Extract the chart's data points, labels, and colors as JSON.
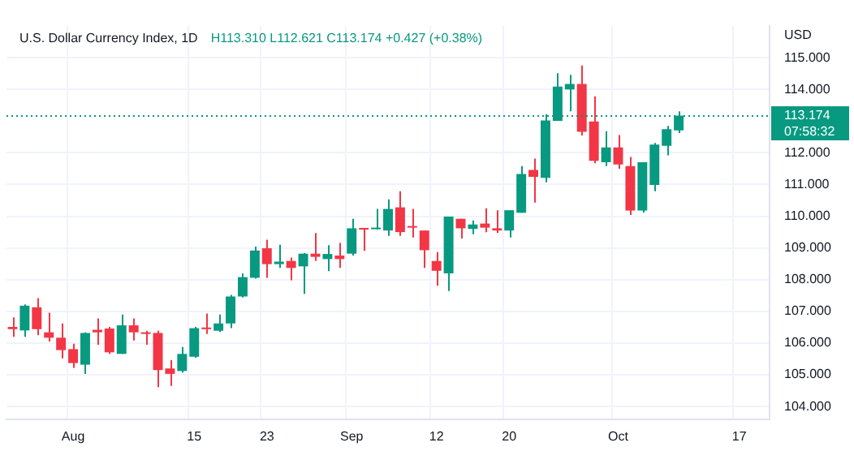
{
  "chart_data": {
    "type": "candlestick",
    "title": "U.S. Dollar Currency Index, 1D",
    "subtitle": "H113.310 L112.621 C113.174 +0.427 (+0.38%)",
    "ylabel": "USD",
    "categories": [
      null,
      null,
      null,
      null,
      null,
      "Aug",
      null,
      null,
      null,
      null,
      null,
      null,
      null,
      null,
      null,
      "15",
      null,
      null,
      null,
      null,
      null,
      "23",
      null,
      null,
      null,
      null,
      null,
      null,
      "Sep",
      null,
      null,
      null,
      null,
      null,
      null,
      "12",
      null,
      null,
      null,
      null,
      null,
      "20",
      null,
      null,
      null,
      null,
      null,
      null,
      null,
      null,
      "Oct",
      null,
      null,
      null,
      null,
      null,
      null,
      null,
      null,
      null,
      "17",
      null,
      null
    ],
    "ohlc": [
      [
        106.51,
        106.81,
        106.2,
        106.44
      ],
      [
        106.4,
        107.22,
        106.2,
        107.18
      ],
      [
        107.13,
        107.42,
        106.25,
        106.44
      ],
      [
        106.34,
        106.96,
        106.05,
        106.17
      ],
      [
        106.17,
        106.62,
        105.52,
        105.78
      ],
      [
        105.81,
        105.98,
        105.22,
        105.37
      ],
      [
        105.32,
        106.34,
        105.03,
        106.32
      ],
      [
        106.42,
        106.78,
        105.95,
        106.34
      ],
      [
        106.46,
        106.51,
        105.66,
        105.71
      ],
      [
        105.66,
        106.9,
        105.66,
        106.56
      ],
      [
        106.56,
        106.78,
        106.08,
        106.34
      ],
      [
        106.34,
        106.39,
        105.95,
        106.29
      ],
      [
        106.32,
        106.39,
        104.61,
        105.15
      ],
      [
        105.2,
        105.46,
        104.65,
        105.03
      ],
      [
        105.12,
        105.88,
        105.07,
        105.66
      ],
      [
        105.57,
        106.51,
        105.54,
        106.47
      ],
      [
        106.47,
        106.93,
        106.29,
        106.44
      ],
      [
        106.39,
        106.9,
        106.35,
        106.62
      ],
      [
        106.62,
        107.52,
        106.47,
        107.47
      ],
      [
        107.47,
        108.2,
        107.44,
        108.08
      ],
      [
        108.06,
        109.04,
        108.03,
        108.92
      ],
      [
        108.99,
        109.26,
        108.06,
        108.49
      ],
      [
        108.49,
        109.1,
        108.37,
        108.57
      ],
      [
        108.59,
        108.7,
        107.98,
        108.37
      ],
      [
        108.42,
        108.84,
        107.55,
        108.82
      ],
      [
        108.82,
        109.47,
        108.59,
        108.72
      ],
      [
        108.65,
        109.09,
        108.27,
        108.81
      ],
      [
        108.76,
        109.16,
        108.37,
        108.65
      ],
      [
        108.82,
        109.92,
        108.76,
        109.62
      ],
      [
        109.62,
        109.62,
        108.91,
        109.58
      ],
      [
        109.59,
        110.23,
        109.58,
        109.62
      ],
      [
        109.55,
        110.53,
        109.38,
        110.23
      ],
      [
        110.28,
        110.79,
        109.38,
        109.5
      ],
      [
        109.69,
        110.23,
        109.33,
        109.64
      ],
      [
        109.55,
        109.55,
        108.37,
        108.93
      ],
      [
        108.59,
        108.87,
        107.81,
        108.28
      ],
      [
        108.2,
        109.99,
        107.64,
        109.99
      ],
      [
        109.92,
        109.92,
        109.3,
        109.62
      ],
      [
        109.6,
        109.87,
        109.43,
        109.74
      ],
      [
        109.77,
        110.25,
        109.5,
        109.64
      ],
      [
        109.62,
        110.19,
        109.47,
        109.55
      ],
      [
        109.55,
        110.19,
        109.33,
        110.19
      ],
      [
        110.11,
        111.58,
        110.11,
        111.33
      ],
      [
        111.46,
        111.82,
        110.43,
        111.24
      ],
      [
        111.21,
        113.22,
        111.07,
        113.02
      ],
      [
        113.01,
        114.51,
        113.01,
        114.09
      ],
      [
        114.0,
        114.46,
        113.31,
        114.17
      ],
      [
        114.17,
        114.75,
        112.55,
        112.66
      ],
      [
        112.99,
        113.78,
        111.67,
        111.75
      ],
      [
        111.7,
        112.68,
        111.58,
        112.17
      ],
      [
        112.17,
        112.56,
        111.5,
        111.63
      ],
      [
        111.58,
        111.87,
        110.04,
        110.18
      ],
      [
        110.18,
        111.7,
        110.11,
        111.7
      ],
      [
        110.99,
        112.31,
        110.79,
        112.26
      ],
      [
        112.22,
        112.85,
        111.92,
        112.747
      ],
      [
        112.71,
        113.31,
        112.621,
        113.174
      ],
      null,
      null,
      null,
      null,
      null,
      null,
      null
    ],
    "colors": [
      "#f23645",
      "#089981",
      "#f23645",
      "#f23645",
      "#f23645",
      "#f23645",
      "#089981",
      "#f23645",
      "#f23645",
      "#089981",
      "#f23645",
      "#f23645",
      "#f23645",
      "#f23645",
      "#089981",
      "#089981",
      "#f23645",
      "#089981",
      "#089981",
      "#089981",
      "#089981",
      "#f23645",
      "#089981",
      "#f23645",
      "#089981",
      "#f23645",
      "#089981",
      "#f23645",
      "#089981",
      "#f23645",
      "#089981",
      "#089981",
      "#f23645",
      "#f23645",
      "#f23645",
      "#f23645",
      "#089981",
      "#f23645",
      "#089981",
      "#f23645",
      "#f23645",
      "#089981",
      "#089981",
      "#f23645",
      "#089981",
      "#089981",
      "#089981",
      "#f23645",
      "#f23645",
      "#089981",
      "#f23645",
      "#f23645",
      "#089981",
      "#089981",
      "#089981",
      "#089981",
      null,
      null,
      null,
      null,
      null,
      null,
      null
    ],
    "ylim": [
      103.6,
      116.0
    ],
    "yticks": [
      {
        "value": 104,
        "label": "104.000"
      },
      {
        "value": 105,
        "label": "105.000"
      },
      {
        "value": 106,
        "label": "106.000"
      },
      {
        "value": 107,
        "label": "107.000"
      },
      {
        "value": 108,
        "label": "108.000"
      },
      {
        "value": 109,
        "label": "109.000"
      },
      {
        "value": 110,
        "label": "110.000"
      },
      {
        "value": 111,
        "label": "111.000"
      },
      {
        "value": 112,
        "label": "112.000"
      },
      {
        "value": 114,
        "label": "114.000"
      },
      {
        "value": 115,
        "label": "115.000"
      }
    ],
    "ref_lines": [
      {
        "axis": "y",
        "value": 113.174,
        "label": "113.174",
        "color": "#089981",
        "line_style": "dotted"
      }
    ],
    "annotations": [
      "07:58:32"
    ],
    "grid": true,
    "legend": false
  }
}
